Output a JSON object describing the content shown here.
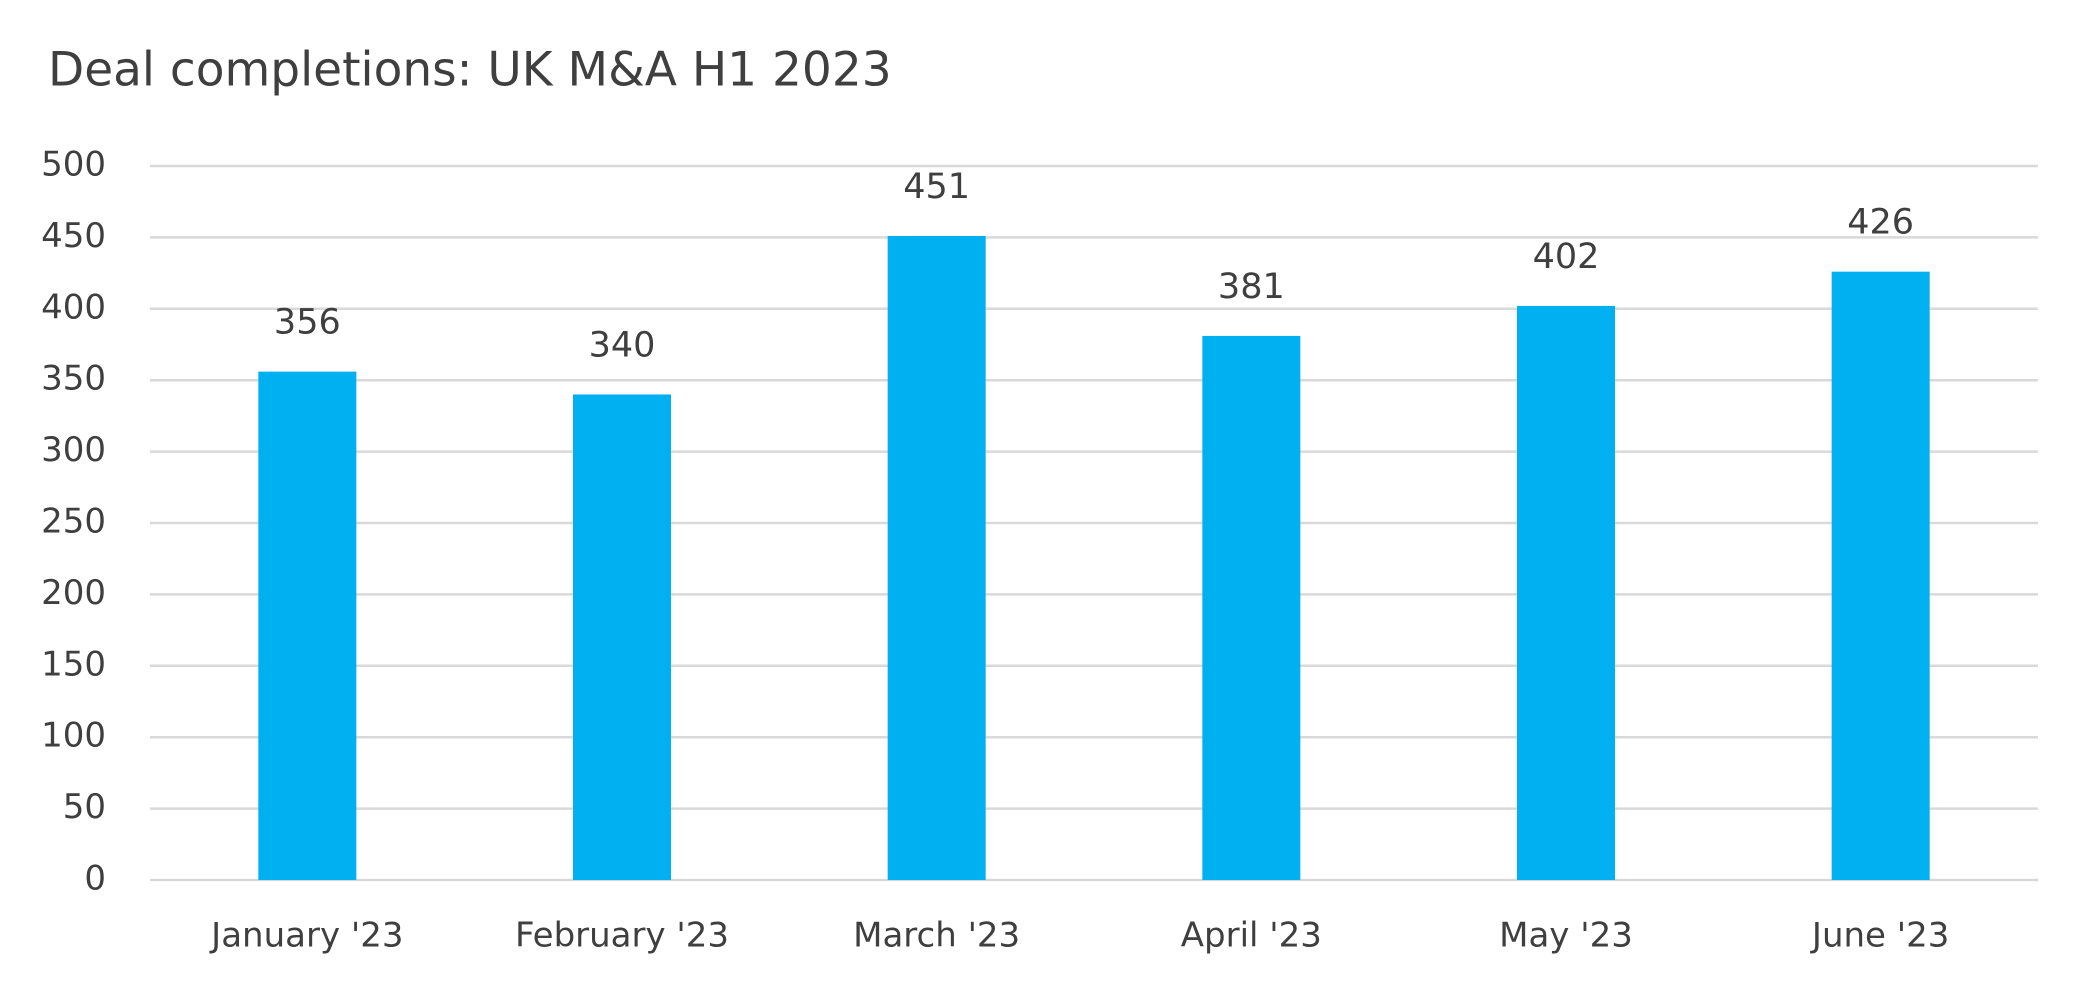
{
  "chart_data": {
    "type": "bar",
    "title": "Deal completions: UK M&A H1 2023",
    "categories": [
      "January '23",
      "February '23",
      "March '23",
      "April '23",
      "May '23",
      "June '23"
    ],
    "values": [
      356,
      340,
      451,
      381,
      402,
      426
    ],
    "color": "#00b0f0",
    "ylim": [
      0,
      500
    ],
    "yticks": [
      0,
      50,
      100,
      150,
      200,
      250,
      300,
      350,
      400,
      450,
      500
    ],
    "grid": true
  }
}
